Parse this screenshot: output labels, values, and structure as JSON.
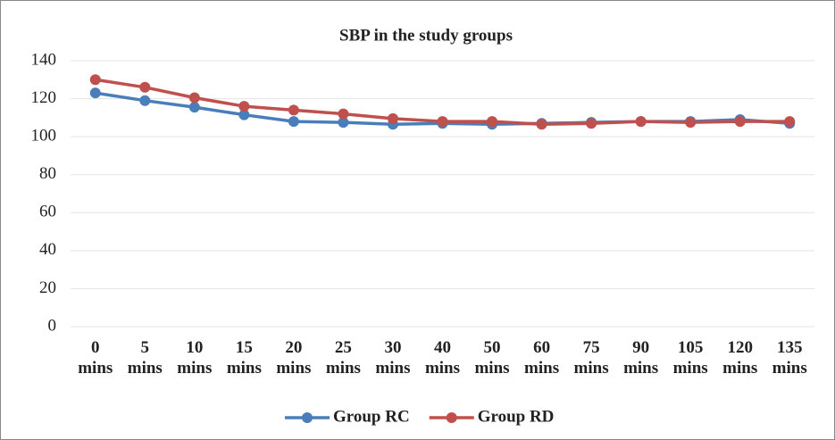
{
  "chart_data": {
    "type": "line",
    "title": "SBP in the study groups",
    "categories": [
      "0 mins",
      "5 mins",
      "10 mins",
      "15 mins",
      "20 mins",
      "25 mins",
      "30 mins",
      "40 mins",
      "50 mins",
      "60 mins",
      "75 mins",
      "90 mins",
      "105 mins",
      "120 mins",
      "135 mins"
    ],
    "series": [
      {
        "name": "Group RC",
        "color": "#4a7ebb",
        "values": [
          123,
          119,
          115.5,
          111.5,
          108,
          107.5,
          106.5,
          107,
          106.5,
          107,
          107.5,
          108,
          108,
          109,
          107
        ]
      },
      {
        "name": "Group RD",
        "color": "#c0504d",
        "values": [
          130,
          126,
          120.5,
          116,
          114,
          112,
          109.5,
          108,
          108,
          106.5,
          107,
          108,
          107.5,
          108,
          108
        ]
      }
    ],
    "ylim": [
      0,
      140
    ],
    "yticks": [
      0,
      20,
      40,
      60,
      80,
      100,
      120,
      140
    ],
    "grid": true,
    "legend": "bottom"
  }
}
